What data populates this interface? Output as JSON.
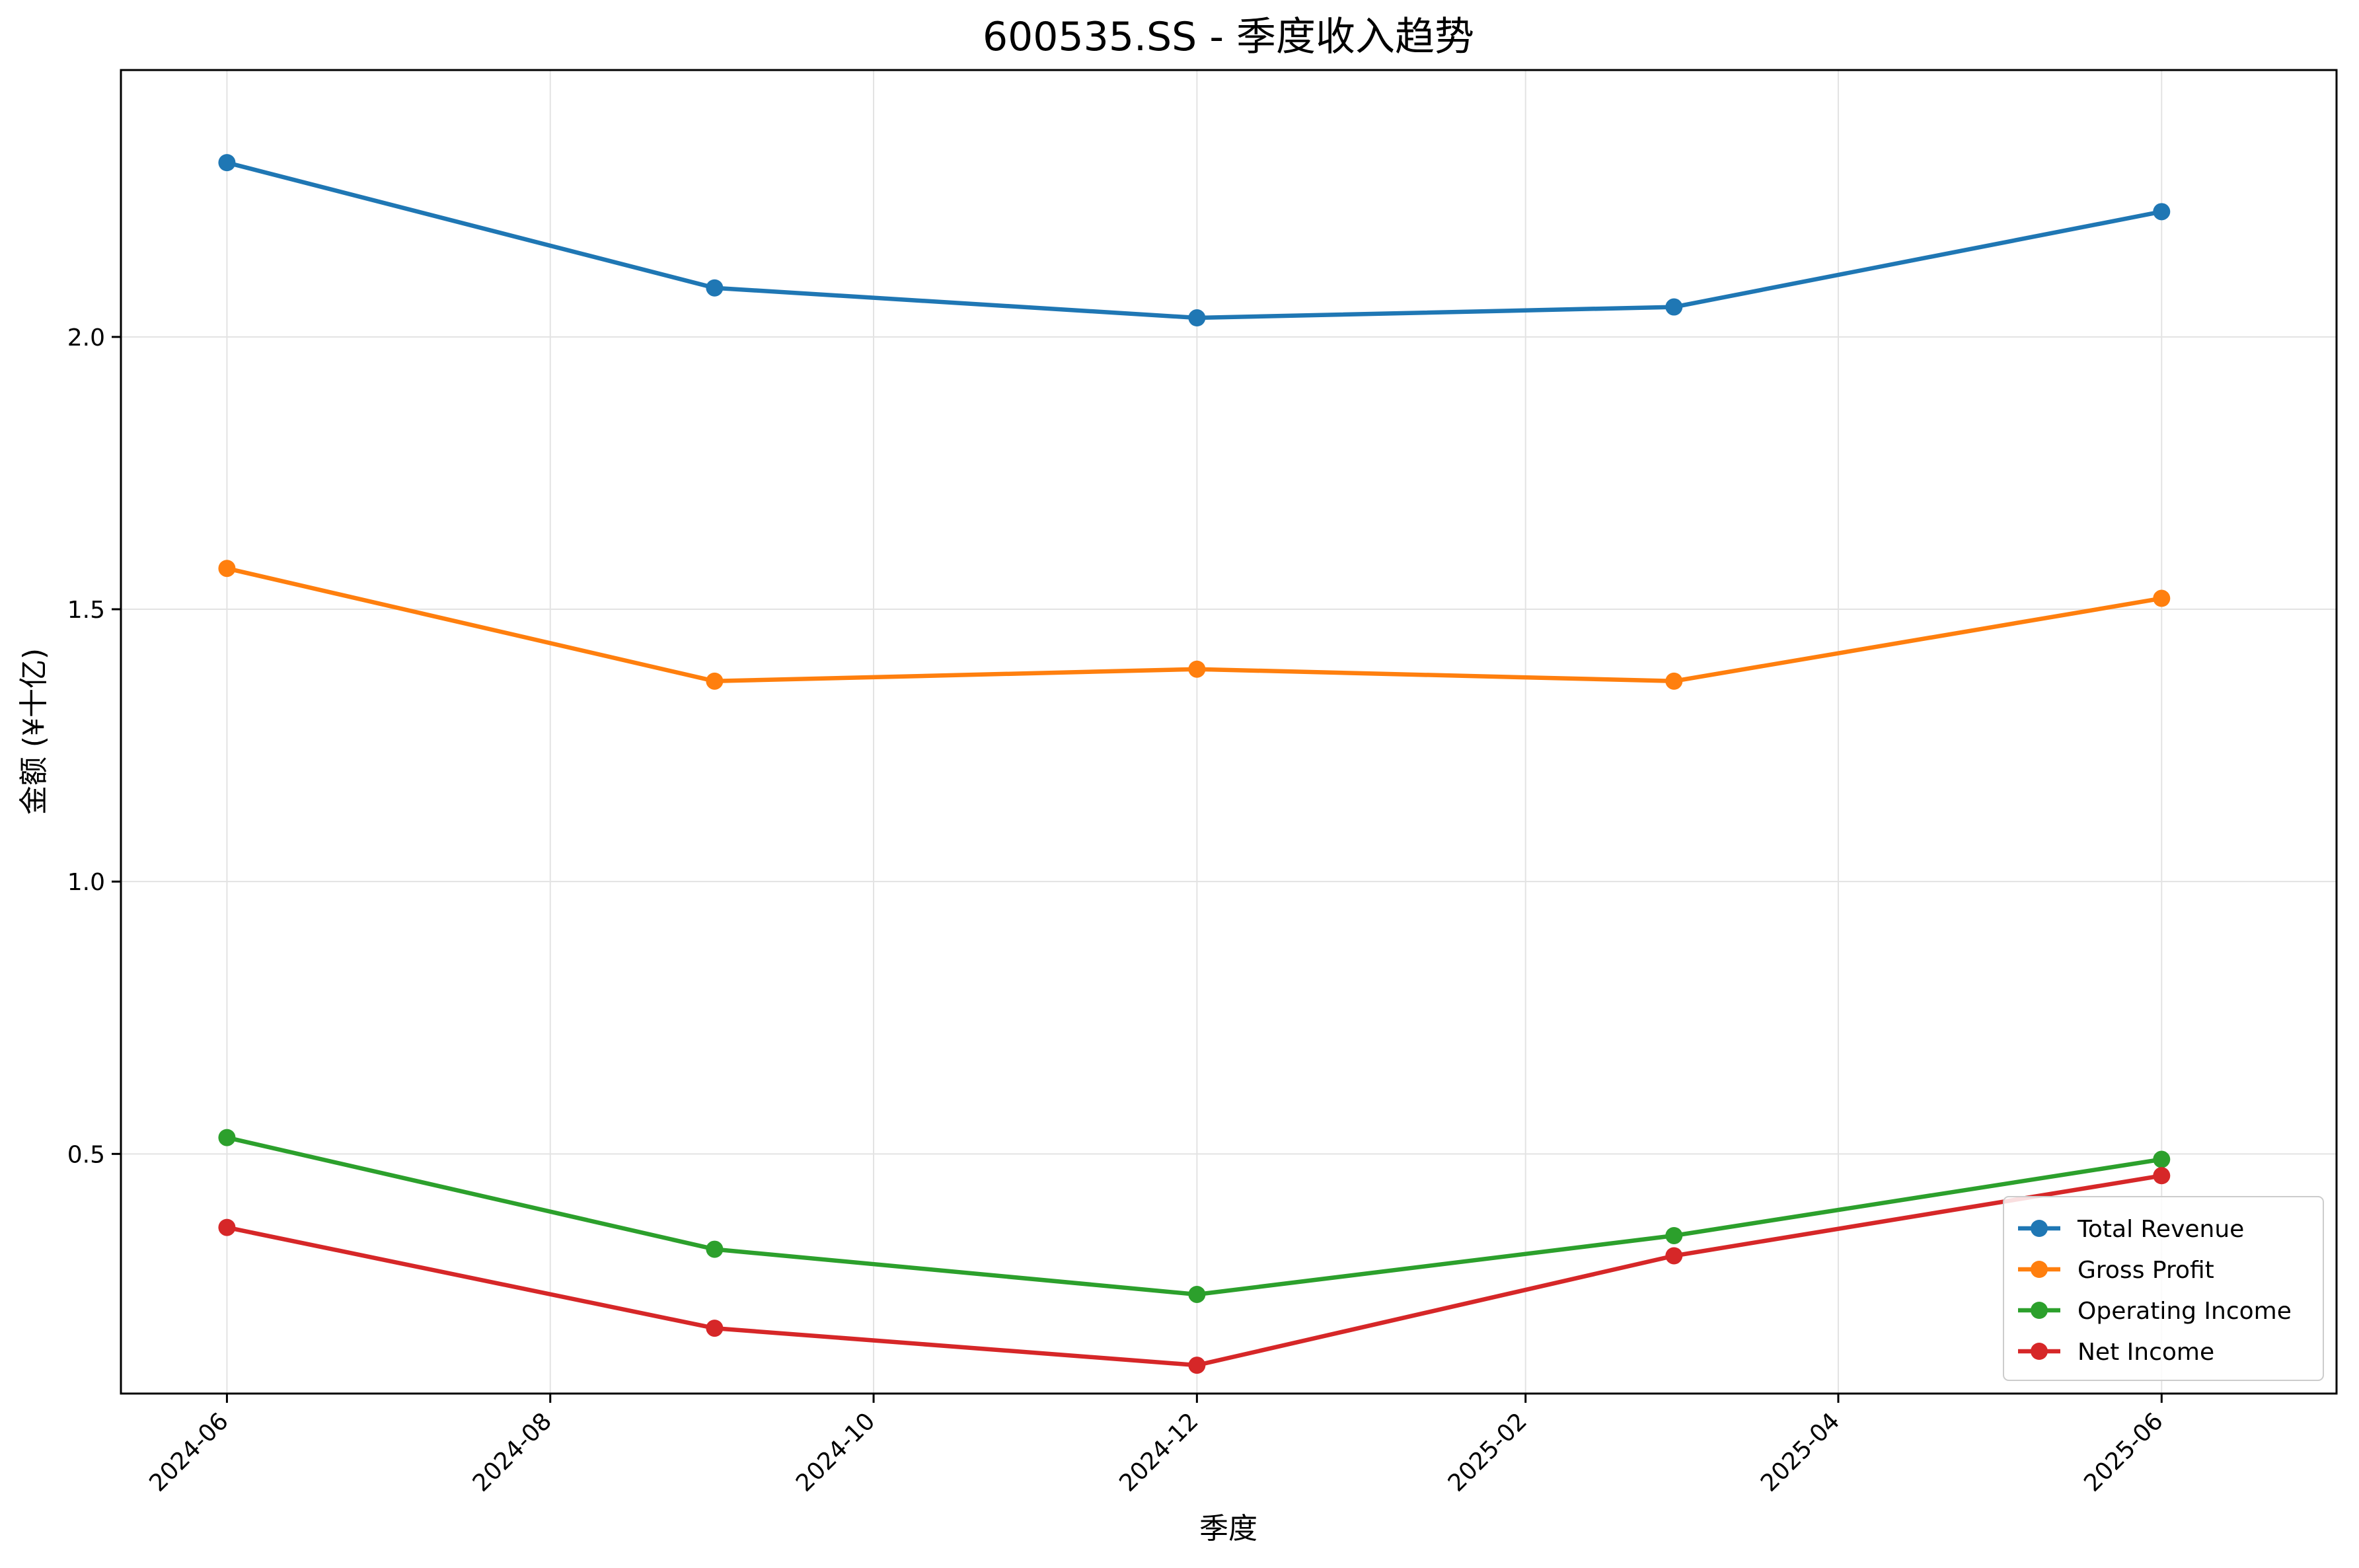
{
  "chart_data": {
    "type": "line",
    "title": "600535.SS - 季度收入趋势",
    "xlabel": "季度",
    "ylabel": "金额 (¥十亿)",
    "x_axis_type": "date",
    "xlim": [
      "2024-05-12",
      "2025-07-04"
    ],
    "ylim": [
      0.06,
      2.49
    ],
    "x_ticks": [
      "2024-06-01",
      "2024-08-01",
      "2024-10-01",
      "2024-12-01",
      "2025-02-01",
      "2025-04-01",
      "2025-06-01"
    ],
    "x_tick_labels": [
      "2024-06",
      "2024-08",
      "2024-10",
      "2024-12",
      "2025-02",
      "2025-04",
      "2025-06"
    ],
    "y_ticks": [
      0.5,
      1.0,
      1.5,
      2.0
    ],
    "y_tick_labels": [
      "0.5",
      "1.0",
      "1.5",
      "2.0"
    ],
    "grid": true,
    "legend_position": "lower-right",
    "x": [
      "2024-06-01",
      "2024-09-01",
      "2024-12-01",
      "2025-03-01",
      "2025-06-01"
    ],
    "series": [
      {
        "name": "Total Revenue",
        "color": "#1f77b4",
        "values": [
          2.32,
          2.09,
          2.035,
          2.055,
          2.23
        ]
      },
      {
        "name": "Gross Profit",
        "color": "#ff7f0e",
        "values": [
          1.575,
          1.368,
          1.39,
          1.368,
          1.52
        ]
      },
      {
        "name": "Operating Income",
        "color": "#2ca02c",
        "values": [
          0.53,
          0.325,
          0.242,
          0.35,
          0.49
        ]
      },
      {
        "name": "Net Income",
        "color": "#d62728",
        "values": [
          0.365,
          0.18,
          0.112,
          0.313,
          0.46
        ]
      }
    ]
  }
}
